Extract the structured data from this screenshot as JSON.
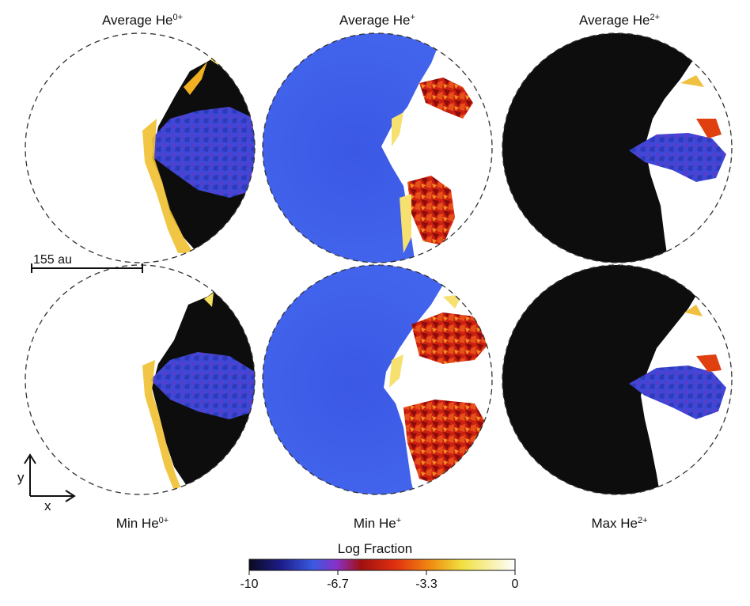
{
  "panels": [
    {
      "id": "avg-he0",
      "title_base": "Average He",
      "title_sup": "0+"
    },
    {
      "id": "avg-he1",
      "title_base": "Average He",
      "title_sup": "+"
    },
    {
      "id": "avg-he2",
      "title_base": "Average He",
      "title_sup": "2+"
    },
    {
      "id": "min-he0",
      "title_base": "Min He",
      "title_sup": "0+"
    },
    {
      "id": "min-he1",
      "title_base": "Min He",
      "title_sup": "+"
    },
    {
      "id": "max-he2",
      "title_base": "Max He",
      "title_sup": "2+"
    }
  ],
  "scale_bar": {
    "label": "155 au"
  },
  "axes": {
    "x": "x",
    "y": "y"
  },
  "colorbar": {
    "title": "Log Fraction",
    "ticks": [
      "-10",
      "-6.7",
      "-3.3",
      "0"
    ],
    "colors": [
      "#0a0a1e",
      "#1c1c8a",
      "#3a5ae0",
      "#8a30c8",
      "#a01010",
      "#e03010",
      "#f08a10",
      "#f0e040",
      "#ffffff"
    ]
  },
  "colors": {
    "blue": "#3f5fe6",
    "black": "#0d0d0d",
    "dash": "#333333"
  }
}
